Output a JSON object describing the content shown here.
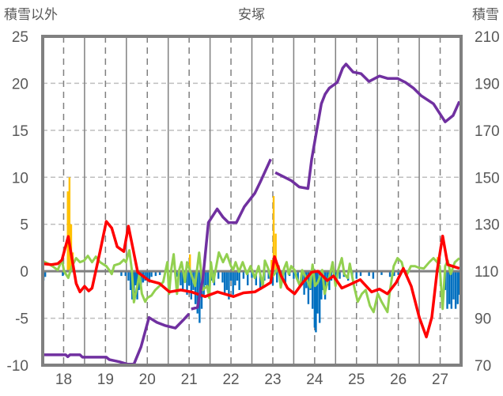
{
  "chart_data": {
    "type": "line",
    "title": "安塚",
    "ylabel_left": "積雪以外",
    "ylabel_right": "積雪",
    "x_range": [
      17.5,
      27.5
    ],
    "x_ticks": [
      "18",
      "19",
      "20",
      "21",
      "22",
      "23",
      "24",
      "25",
      "26",
      "27"
    ],
    "x_tick_values": [
      18,
      19,
      20,
      21,
      22,
      23,
      24,
      25,
      26,
      27
    ],
    "ylim_left": [
      -10,
      25
    ],
    "y_ticks_left": [
      "25",
      "20",
      "15",
      "10",
      "5",
      "0",
      "-5",
      "-10"
    ],
    "y_tick_values_left": [
      25,
      20,
      15,
      10,
      5,
      0,
      -5,
      -10
    ],
    "ylim_right": [
      70,
      210
    ],
    "y_ticks_right": [
      "210",
      "190",
      "170",
      "150",
      "130",
      "110",
      "90",
      "70"
    ],
    "y_tick_values_right": [
      210,
      190,
      170,
      150,
      130,
      110,
      90,
      70
    ],
    "grid": true,
    "colors": {
      "red": "#ff0000",
      "green": "#92d050",
      "purple": "#7030a0",
      "orange": "#ffc000",
      "blue": "#0070c0",
      "axis": "#808080",
      "grid": "#bfbfbf"
    },
    "bars_orange": [
      [
        18.1,
        8.5
      ],
      [
        18.14,
        10
      ],
      [
        18.18,
        5
      ],
      [
        18.22,
        2
      ],
      [
        21.02,
        1.8
      ],
      [
        22.97,
        1.2
      ],
      [
        23.02,
        8
      ],
      [
        23.07,
        4
      ],
      [
        26.94,
        1.5
      ]
    ],
    "bars_blue": [
      [
        17.52,
        -1
      ],
      [
        17.56,
        -0.6
      ],
      [
        17.98,
        -0.5
      ],
      [
        19.38,
        -0.5
      ],
      [
        19.48,
        -0.5
      ],
      [
        19.55,
        -1
      ],
      [
        19.6,
        -2
      ],
      [
        19.64,
        -3
      ],
      [
        19.68,
        -2.5
      ],
      [
        19.72,
        -1.5
      ],
      [
        19.76,
        -3
      ],
      [
        19.8,
        -2
      ],
      [
        19.85,
        -1.5
      ],
      [
        19.9,
        -1.2
      ],
      [
        19.95,
        -1
      ],
      [
        20.0,
        -0.8
      ],
      [
        20.05,
        -1.2
      ],
      [
        20.1,
        -0.6
      ],
      [
        20.2,
        -0.5
      ],
      [
        20.3,
        -0.4
      ],
      [
        20.7,
        -0.6
      ],
      [
        20.8,
        -1.5
      ],
      [
        20.85,
        -2
      ],
      [
        20.9,
        -1
      ],
      [
        20.95,
        -2.5
      ],
      [
        21.0,
        -1.5
      ],
      [
        21.05,
        -3
      ],
      [
        21.1,
        -2
      ],
      [
        21.15,
        -3.5
      ],
      [
        21.2,
        -4.5
      ],
      [
        21.25,
        -5.5
      ],
      [
        21.3,
        -4
      ],
      [
        21.35,
        -2.5
      ],
      [
        21.4,
        -1.5
      ],
      [
        21.45,
        -2
      ],
      [
        21.55,
        -1
      ],
      [
        21.6,
        -1.5
      ],
      [
        21.7,
        -0.8
      ],
      [
        21.8,
        -1.2
      ],
      [
        21.85,
        -2.5
      ],
      [
        21.9,
        -2
      ],
      [
        21.95,
        -3
      ],
      [
        22.0,
        -1
      ],
      [
        22.05,
        -2.5
      ],
      [
        22.1,
        -1.5
      ],
      [
        22.15,
        -1
      ],
      [
        22.2,
        -2
      ],
      [
        22.3,
        -0.8
      ],
      [
        22.4,
        -1.5
      ],
      [
        22.5,
        -0.7
      ],
      [
        22.6,
        -1.5
      ],
      [
        22.7,
        -2
      ],
      [
        22.8,
        -1
      ],
      [
        22.9,
        -0.8
      ],
      [
        23.0,
        -1.5
      ],
      [
        23.1,
        -1.2
      ],
      [
        23.2,
        -0.8
      ],
      [
        23.3,
        -1.5
      ],
      [
        23.4,
        -0.5
      ],
      [
        23.5,
        -0.8
      ],
      [
        23.6,
        -1
      ],
      [
        23.7,
        -1.5
      ],
      [
        23.75,
        -2.5
      ],
      [
        23.8,
        -1.8
      ],
      [
        23.85,
        -3.5
      ],
      [
        23.9,
        -2
      ],
      [
        23.95,
        -4
      ],
      [
        24.0,
        -6
      ],
      [
        24.03,
        -6.5
      ],
      [
        24.07,
        -4.5
      ],
      [
        24.12,
        -5.5
      ],
      [
        24.16,
        -3
      ],
      [
        24.2,
        -2
      ],
      [
        24.25,
        -3
      ],
      [
        24.3,
        -1.5
      ],
      [
        24.35,
        -2
      ],
      [
        24.4,
        -1
      ],
      [
        24.5,
        -1.5
      ],
      [
        24.6,
        -0.8
      ],
      [
        24.7,
        -0.6
      ],
      [
        24.8,
        -1
      ],
      [
        24.9,
        -0.5
      ],
      [
        25.0,
        -0.8
      ],
      [
        25.1,
        -0.5
      ],
      [
        25.3,
        -0.5
      ],
      [
        25.4,
        -0.8
      ],
      [
        25.6,
        -0.4
      ],
      [
        25.8,
        -0.6
      ],
      [
        25.9,
        -0.5
      ],
      [
        26.0,
        -0.4
      ],
      [
        27.12,
        -2
      ],
      [
        27.17,
        -4
      ],
      [
        27.22,
        -3.5
      ],
      [
        27.27,
        -4
      ],
      [
        27.32,
        -3
      ],
      [
        27.37,
        -4
      ],
      [
        27.42,
        -3.5
      ],
      [
        27.46,
        -2.5
      ]
    ],
    "series_green": [
      [
        17.5,
        1.1
      ],
      [
        17.63,
        0.8
      ],
      [
        17.73,
        0.54
      ],
      [
        17.86,
        0.12
      ],
      [
        17.96,
        1.22
      ],
      [
        18.01,
        0
      ],
      [
        18.11,
        -0.7
      ],
      [
        18.2,
        0.54
      ],
      [
        18.3,
        1.39
      ],
      [
        18.39,
        0.96
      ],
      [
        18.49,
        1.13
      ],
      [
        18.58,
        1.64
      ],
      [
        18.68,
        0.96
      ],
      [
        18.77,
        1.55
      ],
      [
        18.87,
        0.96
      ],
      [
        18.96,
        0.71
      ],
      [
        19.02,
        0.54
      ],
      [
        19.09,
        0.12
      ],
      [
        19.15,
        -0.3
      ],
      [
        19.21,
        0.63
      ],
      [
        19.34,
        0.8
      ],
      [
        19.44,
        1.22
      ],
      [
        19.49,
        0.96
      ],
      [
        19.57,
        2.23
      ],
      [
        19.63,
        0.12
      ],
      [
        19.68,
        -3.3
      ],
      [
        19.76,
        -1.57
      ],
      [
        19.81,
        -0.3
      ],
      [
        19.87,
        -2.4
      ],
      [
        19.95,
        -3.25
      ],
      [
        20.0,
        -2.83
      ],
      [
        20.1,
        -2.58
      ],
      [
        20.19,
        -2
      ],
      [
        20.29,
        -1.57
      ],
      [
        20.38,
        -1.14
      ],
      [
        20.48,
        0.96
      ],
      [
        20.52,
        -2.4
      ],
      [
        20.57,
        0.12
      ],
      [
        20.63,
        1.81
      ],
      [
        20.71,
        -2.4
      ],
      [
        20.76,
        0.12
      ],
      [
        20.82,
        0.96
      ],
      [
        20.9,
        -1.14
      ],
      [
        20.95,
        0.96
      ],
      [
        21.05,
        -0.3
      ],
      [
        21.14,
        -1.57
      ],
      [
        21.24,
        1.98
      ],
      [
        21.33,
        -1.99
      ],
      [
        21.43,
        -1.57
      ],
      [
        21.48,
        -2.83
      ],
      [
        21.52,
        0.96
      ],
      [
        21.58,
        -1.14
      ],
      [
        21.71,
        2.0
      ],
      [
        21.81,
        0.96
      ],
      [
        21.9,
        1.81
      ],
      [
        22.0,
        0.54
      ],
      [
        22.05,
        0.12
      ],
      [
        22.11,
        0.96
      ],
      [
        22.19,
        -0.05
      ],
      [
        22.28,
        0.96
      ],
      [
        22.38,
        -0.3
      ],
      [
        22.47,
        0.54
      ],
      [
        22.57,
        -0.72
      ],
      [
        22.66,
        0.54
      ],
      [
        22.76,
        -1.57
      ],
      [
        22.81,
        1.13
      ],
      [
        22.89,
        0.29
      ],
      [
        22.95,
        -0.72
      ],
      [
        23.04,
        -0.3
      ],
      [
        23.14,
        0.54
      ],
      [
        23.19,
        -1.73
      ],
      [
        23.27,
        0.29
      ],
      [
        23.33,
        0.96
      ],
      [
        23.38,
        -0.3
      ],
      [
        23.44,
        0.54
      ],
      [
        23.52,
        0.12
      ],
      [
        23.57,
        -0.72
      ],
      [
        23.65,
        -1.57
      ],
      [
        23.7,
        0.12
      ],
      [
        23.8,
        -0.72
      ],
      [
        23.89,
        -1.73
      ],
      [
        23.95,
        0.71
      ],
      [
        24.01,
        -1.57
      ],
      [
        24.08,
        -1.14
      ],
      [
        24.18,
        0.12
      ],
      [
        24.24,
        -2.41
      ],
      [
        24.31,
        -1.14
      ],
      [
        24.37,
        -0.3
      ],
      [
        24.43,
        0.96
      ],
      [
        24.5,
        -1.57
      ],
      [
        24.56,
        0.12
      ],
      [
        24.65,
        1.39
      ],
      [
        24.71,
        -0.3
      ],
      [
        24.79,
        -0.72
      ],
      [
        24.84,
        0.8
      ],
      [
        24.94,
        -1.57
      ],
      [
        25.03,
        -3.25
      ],
      [
        25.13,
        -2.4
      ],
      [
        25.22,
        -2
      ],
      [
        25.32,
        -3.67
      ],
      [
        25.41,
        -4.35
      ],
      [
        25.51,
        -2.4
      ],
      [
        25.6,
        -3.25
      ],
      [
        25.74,
        -4.35
      ],
      [
        25.79,
        -2.4
      ],
      [
        25.89,
        0.54
      ],
      [
        25.98,
        1.39
      ],
      [
        26.08,
        0.96
      ],
      [
        26.13,
        0.12
      ],
      [
        26.21,
        -0.3
      ],
      [
        26.3,
        0.54
      ],
      [
        26.4,
        0.54
      ],
      [
        26.49,
        0.37
      ],
      [
        26.61,
        0.29
      ],
      [
        26.74,
        0.96
      ],
      [
        26.84,
        1.39
      ],
      [
        26.93,
        0.96
      ],
      [
        26.99,
        0.54
      ],
      [
        27.06,
        -4.0
      ],
      [
        27.12,
        0.54
      ],
      [
        27.18,
        1.13
      ],
      [
        27.25,
        -0.3
      ],
      [
        27.35,
        0.96
      ],
      [
        27.46,
        1.39
      ]
    ],
    "series_red": [
      [
        17.5,
        0.8
      ],
      [
        17.7,
        0.7
      ],
      [
        17.86,
        0.8
      ],
      [
        17.96,
        1.2
      ],
      [
        18.11,
        3.7
      ],
      [
        18.3,
        -1.3
      ],
      [
        18.39,
        -2.2
      ],
      [
        18.5,
        -1.6
      ],
      [
        18.6,
        -2.1
      ],
      [
        18.68,
        -1.8
      ],
      [
        18.87,
        2.1
      ],
      [
        19.02,
        5.3
      ],
      [
        19.15,
        4.6
      ],
      [
        19.28,
        2.6
      ],
      [
        19.44,
        2.1
      ],
      [
        19.55,
        4.8
      ],
      [
        19.77,
        -0.1
      ],
      [
        20.04,
        -1
      ],
      [
        20.29,
        -1.3
      ],
      [
        20.53,
        -2.2
      ],
      [
        20.8,
        -2.0
      ],
      [
        21.05,
        -2.2
      ],
      [
        21.38,
        -2.7
      ],
      [
        21.68,
        -2.2
      ],
      [
        22.06,
        -2.7
      ],
      [
        22.3,
        -2.3
      ],
      [
        22.57,
        -2.2
      ],
      [
        22.8,
        -1.6
      ],
      [
        22.95,
        -1.2
      ],
      [
        23.04,
        1.55
      ],
      [
        23.2,
        -0.5
      ],
      [
        23.35,
        -1.8
      ],
      [
        23.52,
        -2.4
      ],
      [
        23.7,
        -1.3
      ],
      [
        23.93,
        -0.1
      ],
      [
        24.08,
        0
      ],
      [
        24.3,
        -1.0
      ],
      [
        24.45,
        -0.5
      ],
      [
        24.65,
        -1.8
      ],
      [
        24.85,
        -1.4
      ],
      [
        25.09,
        -0.9
      ],
      [
        25.36,
        -2.2
      ],
      [
        25.55,
        -1.9
      ],
      [
        25.74,
        -2.4
      ],
      [
        25.95,
        -1.2
      ],
      [
        26.12,
        0.3
      ],
      [
        26.31,
        -1.6
      ],
      [
        26.5,
        -4.9
      ],
      [
        26.67,
        -7
      ],
      [
        26.8,
        -4.9
      ],
      [
        26.93,
        0.1
      ],
      [
        27.06,
        3.75
      ],
      [
        27.18,
        0.7
      ],
      [
        27.46,
        0.3
      ]
    ],
    "series_purple_right_axis": [
      [
        [
          17.5,
          74.4
        ],
        [
          18.05,
          74.4
        ],
        [
          18.1,
          73.6
        ],
        [
          18.15,
          74.4
        ],
        [
          18.39,
          74.4
        ],
        [
          18.45,
          73.4
        ],
        [
          19.02,
          73.4
        ],
        [
          19.09,
          72.4
        ],
        [
          19.34,
          71.4
        ],
        [
          19.53,
          70.4
        ],
        [
          19.68,
          70.4
        ],
        [
          19.85,
          77.8
        ],
        [
          20.04,
          90.3
        ],
        [
          20.23,
          88.2
        ],
        [
          20.42,
          86.9
        ],
        [
          20.67,
          85.8
        ],
        [
          20.86,
          89.2
        ],
        [
          21.0,
          91.9
        ]
      ],
      [
        [
          21.05,
          93.9
        ],
        [
          21.2,
          94.6
        ],
        [
          21.33,
          107
        ],
        [
          21.46,
          130.7
        ],
        [
          21.67,
          136.5
        ],
        [
          21.81,
          133
        ],
        [
          21.94,
          130.7
        ],
        [
          22.13,
          130.7
        ],
        [
          22.32,
          137.5
        ],
        [
          22.57,
          143.2
        ],
        [
          22.7,
          148
        ],
        [
          22.95,
          157.7
        ]
      ],
      [
        [
          23.06,
          152
        ],
        [
          23.44,
          148.6
        ],
        [
          23.63,
          145.9
        ],
        [
          23.84,
          145.2
        ],
        [
          23.93,
          157.7
        ],
        [
          24.16,
          181.3
        ],
        [
          24.25,
          185.4
        ],
        [
          24.35,
          188
        ],
        [
          24.54,
          190.4
        ],
        [
          24.67,
          196.5
        ],
        [
          24.75,
          198.2
        ],
        [
          24.92,
          194.8
        ],
        [
          25.11,
          194.1
        ],
        [
          25.3,
          190.8
        ],
        [
          25.55,
          193.1
        ],
        [
          25.74,
          192.1
        ],
        [
          25.98,
          192.1
        ],
        [
          26.17,
          190.4
        ],
        [
          26.36,
          188
        ],
        [
          26.55,
          184.7
        ],
        [
          26.84,
          181.3
        ],
        [
          27.12,
          173.6
        ],
        [
          27.31,
          176.3
        ],
        [
          27.46,
          182.3
        ]
      ]
    ]
  }
}
